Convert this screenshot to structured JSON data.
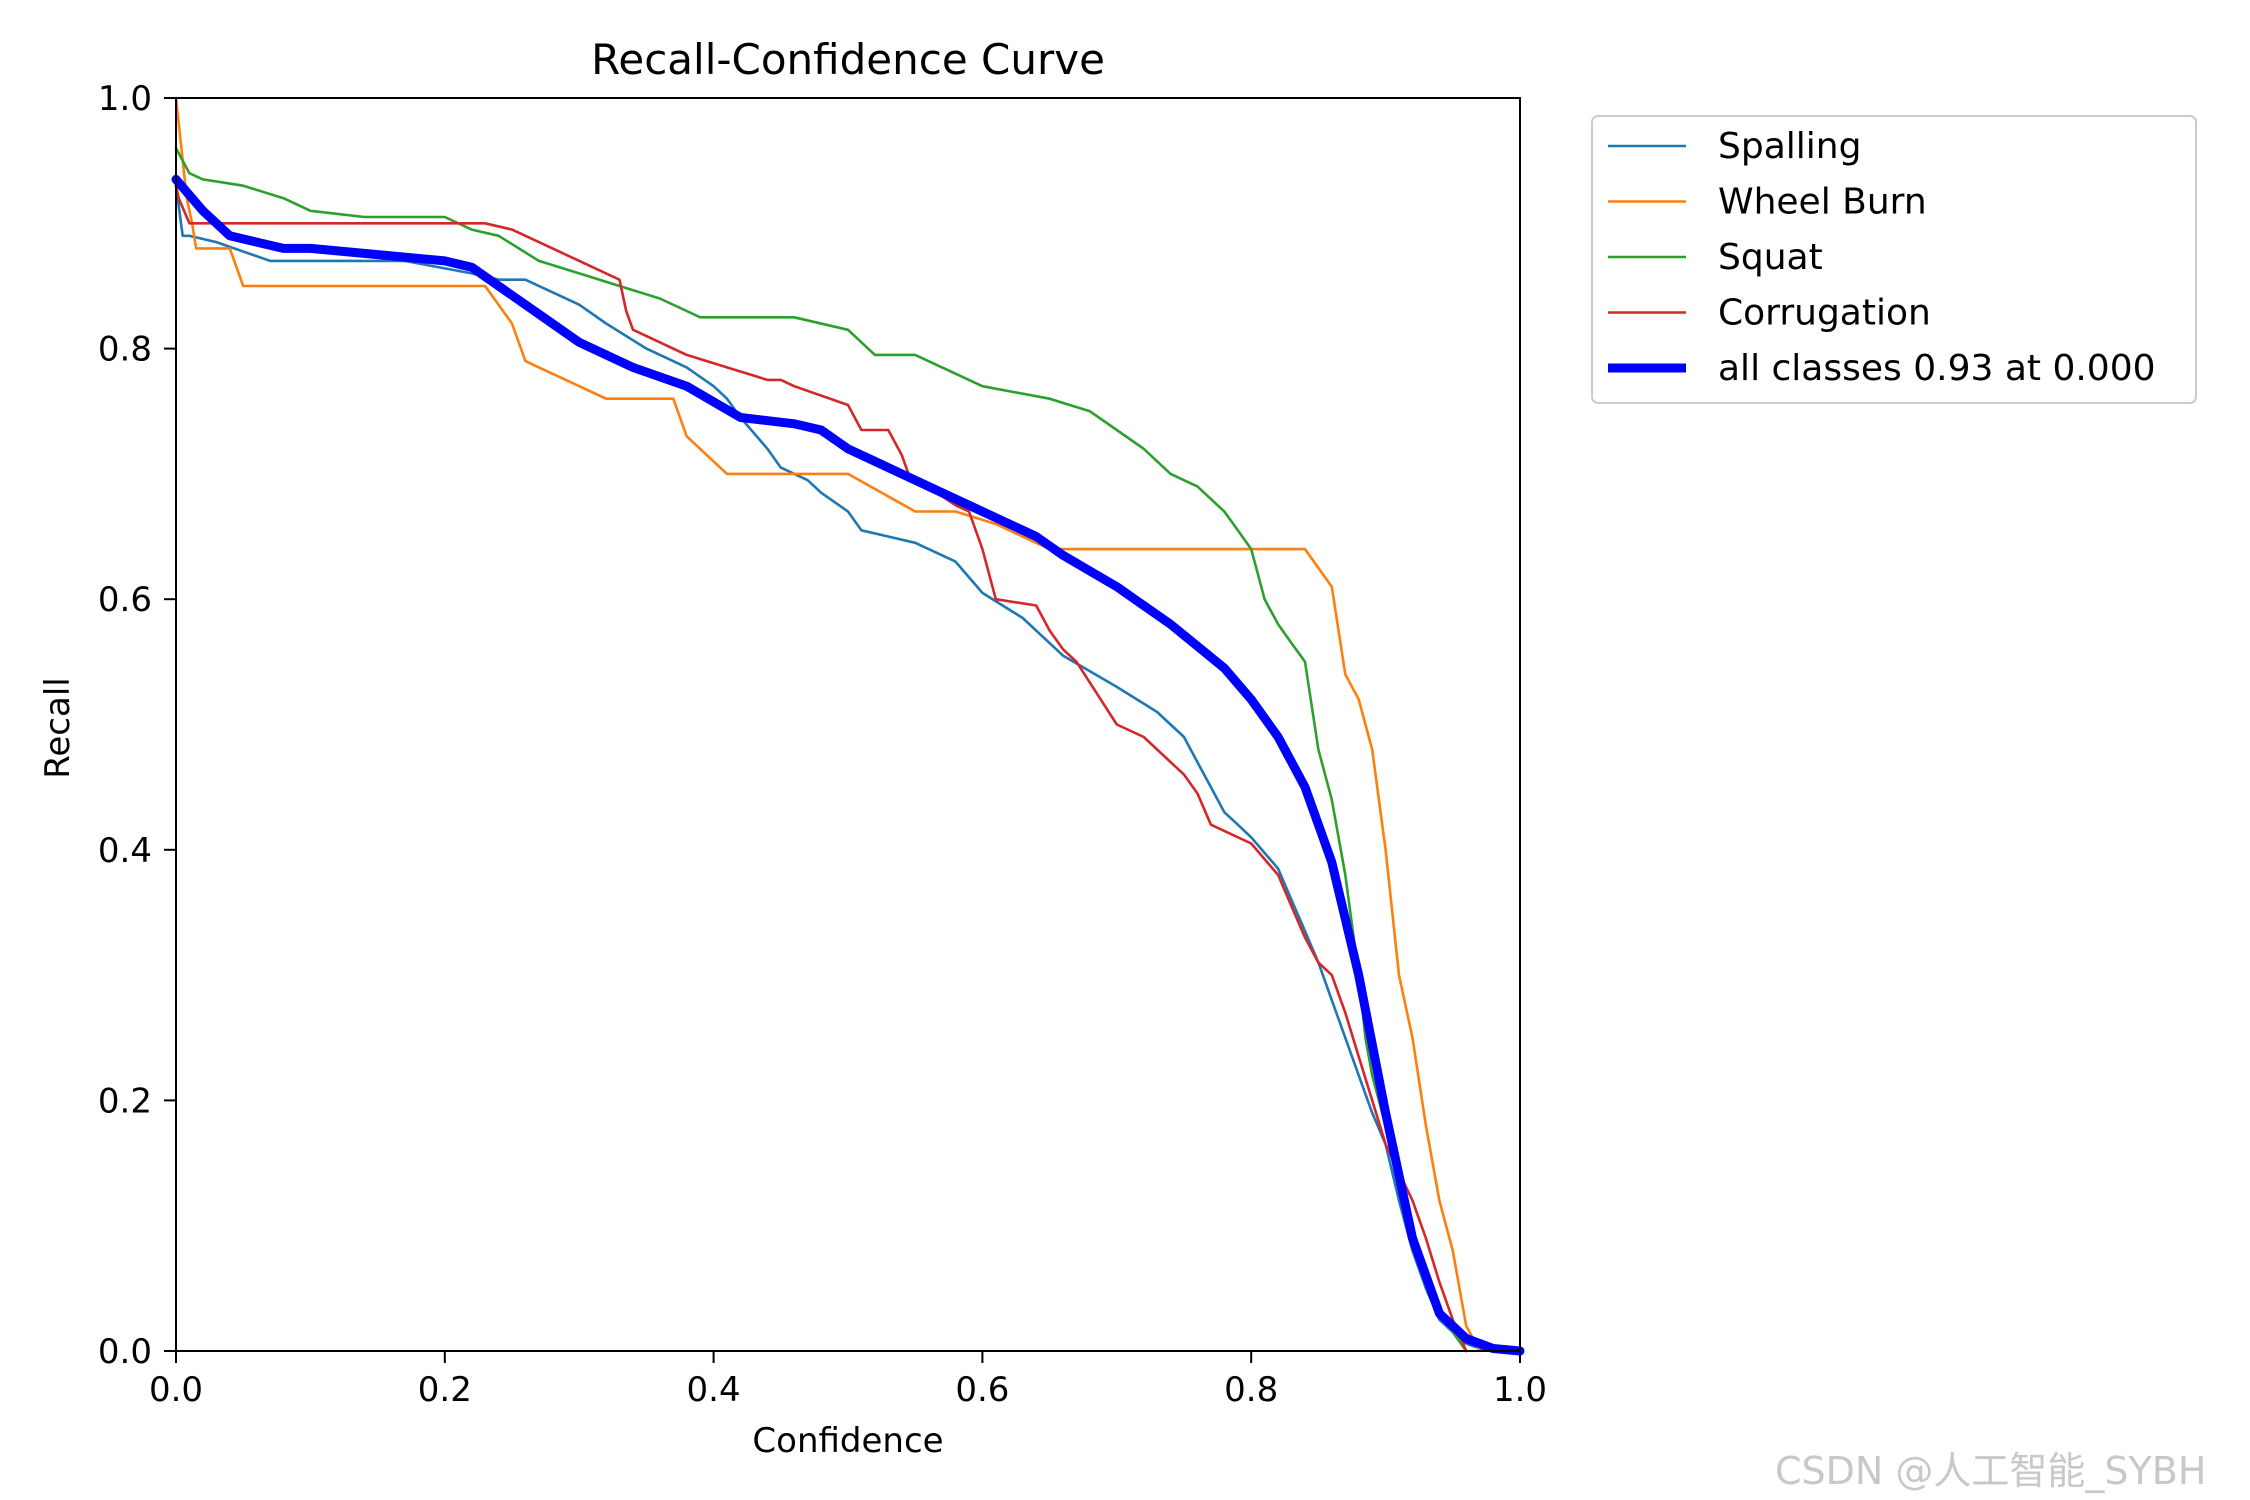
{
  "chart_data": {
    "type": "line",
    "title": "Recall-Confidence Curve",
    "xlabel": "Confidence",
    "ylabel": "Recall",
    "xlim": [
      0,
      1
    ],
    "ylim": [
      0,
      1
    ],
    "xticks": [
      0.0,
      0.2,
      0.4,
      0.6,
      0.8,
      1.0
    ],
    "yticks": [
      0.0,
      0.2,
      0.4,
      0.6,
      0.8,
      1.0
    ],
    "xtick_labels": [
      "0.0",
      "0.2",
      "0.4",
      "0.6",
      "0.8",
      "1.0"
    ],
    "ytick_labels": [
      "0.0",
      "0.2",
      "0.4",
      "0.6",
      "0.8",
      "1.0"
    ],
    "grid": false,
    "legend_position": "outside top-right",
    "series": [
      {
        "name": "Spalling",
        "color": "#1f77b4",
        "x": [
          0.0,
          0.005,
          0.01,
          0.03,
          0.07,
          0.08,
          0.17,
          0.22,
          0.24,
          0.26,
          0.28,
          0.3,
          0.32,
          0.35,
          0.38,
          0.4,
          0.41,
          0.42,
          0.44,
          0.45,
          0.47,
          0.48,
          0.5,
          0.51,
          0.55,
          0.58,
          0.6,
          0.63,
          0.65,
          0.66,
          0.7,
          0.73,
          0.75,
          0.76,
          0.77,
          0.78,
          0.79,
          0.8,
          0.82,
          0.83,
          0.84,
          0.85,
          0.86,
          0.87,
          0.88,
          0.89,
          0.9,
          0.91,
          0.92,
          0.93,
          0.94,
          0.95,
          0.96,
          0.97,
          0.98
        ],
        "y": [
          0.93,
          0.89,
          0.89,
          0.885,
          0.87,
          0.87,
          0.87,
          0.86,
          0.855,
          0.855,
          0.845,
          0.835,
          0.82,
          0.8,
          0.785,
          0.77,
          0.76,
          0.745,
          0.72,
          0.705,
          0.695,
          0.685,
          0.67,
          0.655,
          0.645,
          0.63,
          0.605,
          0.585,
          0.565,
          0.555,
          0.53,
          0.51,
          0.49,
          0.47,
          0.45,
          0.43,
          0.42,
          0.41,
          0.385,
          0.36,
          0.335,
          0.31,
          0.28,
          0.25,
          0.22,
          0.19,
          0.165,
          0.12,
          0.08,
          0.05,
          0.025,
          0.015,
          0.006,
          0.002,
          0.0
        ]
      },
      {
        "name": "Wheel Burn",
        "color": "#ff7f0e",
        "x": [
          0.0,
          0.002,
          0.005,
          0.008,
          0.012,
          0.015,
          0.04,
          0.05,
          0.23,
          0.25,
          0.26,
          0.27,
          0.32,
          0.37,
          0.38,
          0.41,
          0.5,
          0.55,
          0.58,
          0.61,
          0.65,
          0.7,
          0.75,
          0.8,
          0.84,
          0.86,
          0.87,
          0.88,
          0.89,
          0.9,
          0.91,
          0.92,
          0.93,
          0.94,
          0.95,
          0.96,
          0.97
        ],
        "y": [
          1.0,
          0.98,
          0.95,
          0.92,
          0.9,
          0.88,
          0.88,
          0.85,
          0.85,
          0.82,
          0.79,
          0.785,
          0.76,
          0.76,
          0.73,
          0.7,
          0.7,
          0.67,
          0.67,
          0.66,
          0.64,
          0.64,
          0.64,
          0.64,
          0.64,
          0.61,
          0.54,
          0.52,
          0.48,
          0.4,
          0.3,
          0.25,
          0.18,
          0.12,
          0.08,
          0.02,
          0.0
        ]
      },
      {
        "name": "Squat",
        "color": "#2ca02c",
        "x": [
          0.0,
          0.005,
          0.01,
          0.02,
          0.05,
          0.08,
          0.1,
          0.14,
          0.2,
          0.22,
          0.24,
          0.27,
          0.3,
          0.33,
          0.36,
          0.38,
          0.39,
          0.4,
          0.46,
          0.5,
          0.52,
          0.55,
          0.58,
          0.6,
          0.65,
          0.68,
          0.7,
          0.72,
          0.74,
          0.76,
          0.78,
          0.79,
          0.8,
          0.81,
          0.82,
          0.83,
          0.84,
          0.85,
          0.86,
          0.87,
          0.88,
          0.885,
          0.89,
          0.9,
          0.91,
          0.92,
          0.93,
          0.94,
          0.95,
          0.96
        ],
        "y": [
          0.96,
          0.95,
          0.94,
          0.935,
          0.93,
          0.92,
          0.91,
          0.905,
          0.905,
          0.895,
          0.89,
          0.87,
          0.86,
          0.85,
          0.84,
          0.83,
          0.825,
          0.825,
          0.825,
          0.815,
          0.795,
          0.795,
          0.78,
          0.77,
          0.76,
          0.75,
          0.735,
          0.72,
          0.7,
          0.69,
          0.67,
          0.655,
          0.64,
          0.6,
          0.58,
          0.565,
          0.55,
          0.48,
          0.44,
          0.38,
          0.3,
          0.25,
          0.22,
          0.18,
          0.14,
          0.1,
          0.06,
          0.03,
          0.015,
          0.0
        ]
      },
      {
        "name": "Corrugation",
        "color": "#d62728",
        "x": [
          0.0,
          0.002,
          0.01,
          0.15,
          0.23,
          0.25,
          0.27,
          0.33,
          0.335,
          0.34,
          0.38,
          0.41,
          0.44,
          0.45,
          0.46,
          0.5,
          0.51,
          0.53,
          0.54,
          0.545,
          0.58,
          0.59,
          0.6,
          0.61,
          0.64,
          0.65,
          0.66,
          0.67,
          0.7,
          0.72,
          0.75,
          0.76,
          0.77,
          0.8,
          0.82,
          0.83,
          0.84,
          0.85,
          0.86,
          0.87,
          0.88,
          0.89,
          0.9,
          0.92,
          0.93,
          0.94,
          0.95,
          0.96
        ],
        "y": [
          0.93,
          0.92,
          0.9,
          0.9,
          0.9,
          0.895,
          0.885,
          0.855,
          0.83,
          0.815,
          0.795,
          0.785,
          0.775,
          0.775,
          0.77,
          0.755,
          0.735,
          0.735,
          0.715,
          0.7,
          0.675,
          0.67,
          0.64,
          0.6,
          0.595,
          0.575,
          0.56,
          0.55,
          0.5,
          0.49,
          0.46,
          0.445,
          0.42,
          0.405,
          0.38,
          0.355,
          0.33,
          0.31,
          0.3,
          0.27,
          0.235,
          0.2,
          0.165,
          0.12,
          0.09,
          0.055,
          0.025,
          0.0
        ]
      },
      {
        "name": "all classes 0.93 at 0.000",
        "color": "#0000ff",
        "x": [
          0.0,
          0.02,
          0.04,
          0.06,
          0.08,
          0.1,
          0.15,
          0.2,
          0.22,
          0.24,
          0.26,
          0.28,
          0.3,
          0.34,
          0.38,
          0.42,
          0.46,
          0.48,
          0.5,
          0.54,
          0.58,
          0.6,
          0.64,
          0.66,
          0.7,
          0.74,
          0.78,
          0.8,
          0.82,
          0.84,
          0.86,
          0.88,
          0.9,
          0.92,
          0.94,
          0.96,
          0.98,
          1.0
        ],
        "y": [
          0.935,
          0.91,
          0.89,
          0.885,
          0.88,
          0.88,
          0.875,
          0.87,
          0.865,
          0.85,
          0.835,
          0.82,
          0.805,
          0.785,
          0.77,
          0.745,
          0.74,
          0.735,
          0.72,
          0.7,
          0.68,
          0.67,
          0.65,
          0.635,
          0.61,
          0.58,
          0.545,
          0.52,
          0.49,
          0.45,
          0.39,
          0.3,
          0.19,
          0.09,
          0.03,
          0.01,
          0.002,
          0.0
        ]
      }
    ]
  },
  "watermark": "CSDN @人工智能_SYBH"
}
